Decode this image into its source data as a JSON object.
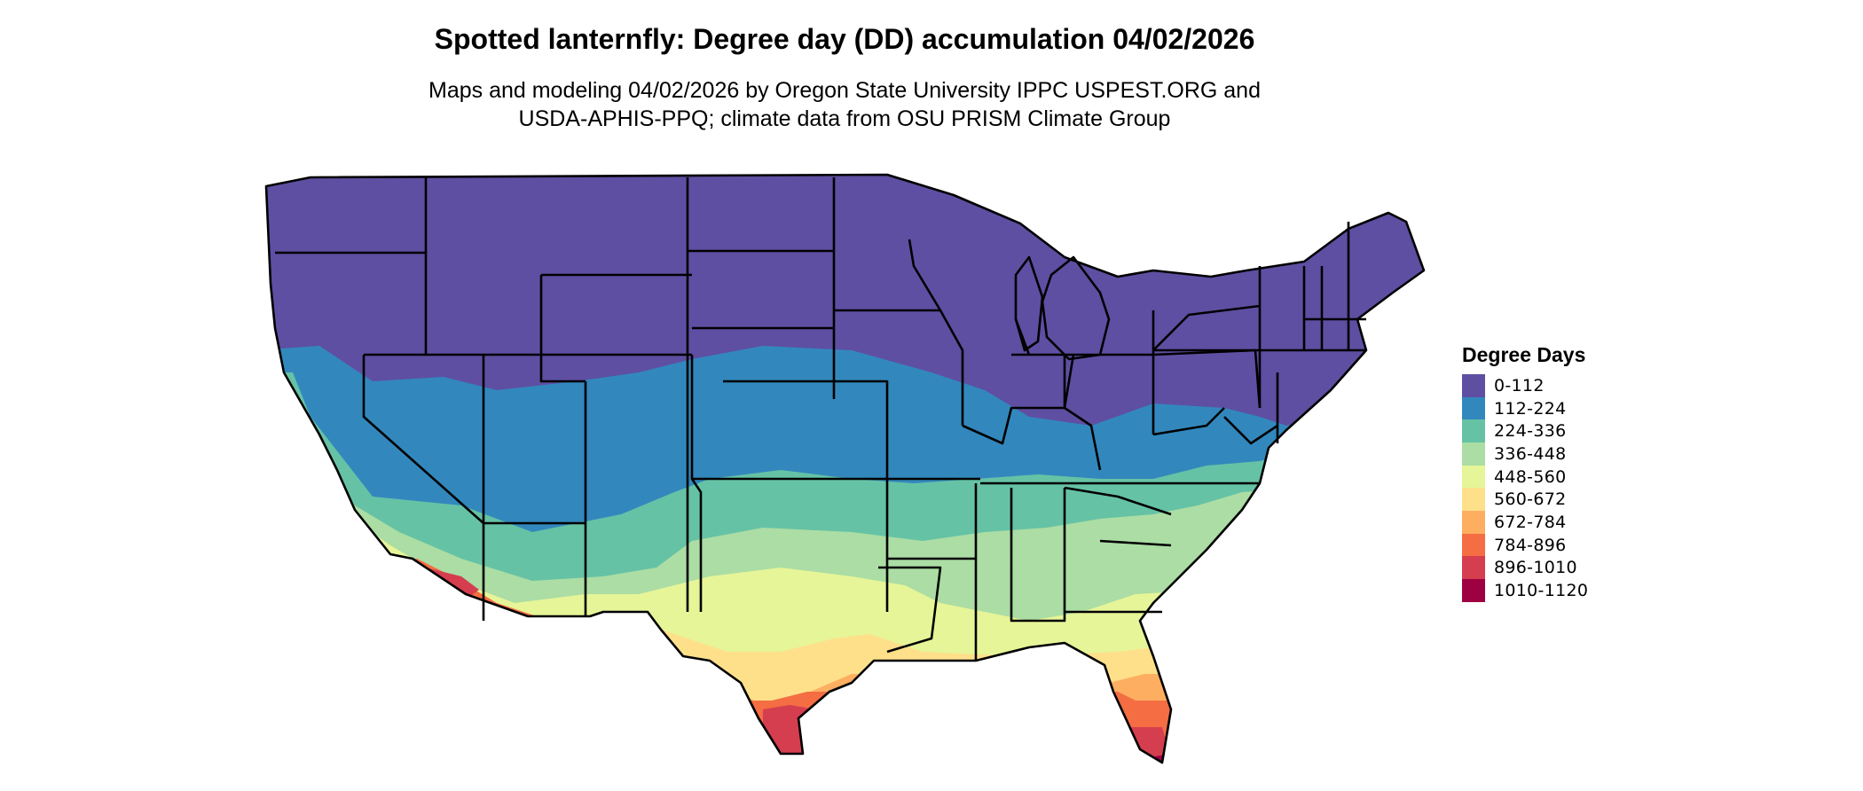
{
  "title": "Spotted lanternfly: Degree day (DD) accumulation 04/02/2026",
  "subtitle": {
    "line1": "Maps and modeling 04/02/2026 by Oregon State University IPPC USPEST.ORG and",
    "line2": "USDA-APHIS-PPQ; climate data from OSU PRISM Climate Group"
  },
  "legend": {
    "title": "Degree Days",
    "items": [
      {
        "label": "0-112",
        "color": "#5e4fa2"
      },
      {
        "label": "112-224",
        "color": "#3288bd"
      },
      {
        "label": "224-336",
        "color": "#66c2a5"
      },
      {
        "label": "336-448",
        "color": "#abdda4"
      },
      {
        "label": "448-560",
        "color": "#e6f598"
      },
      {
        "label": "560-672",
        "color": "#fee08b"
      },
      {
        "label": "672-784",
        "color": "#fdae61"
      },
      {
        "label": "784-896",
        "color": "#f46d43"
      },
      {
        "label": "896-1010",
        "color": "#d53e4f"
      },
      {
        "label": "1010-1120",
        "color": "#9e0142"
      }
    ]
  },
  "map": {
    "region": "contiguous-united-states",
    "boundaries": "state-lines"
  }
}
